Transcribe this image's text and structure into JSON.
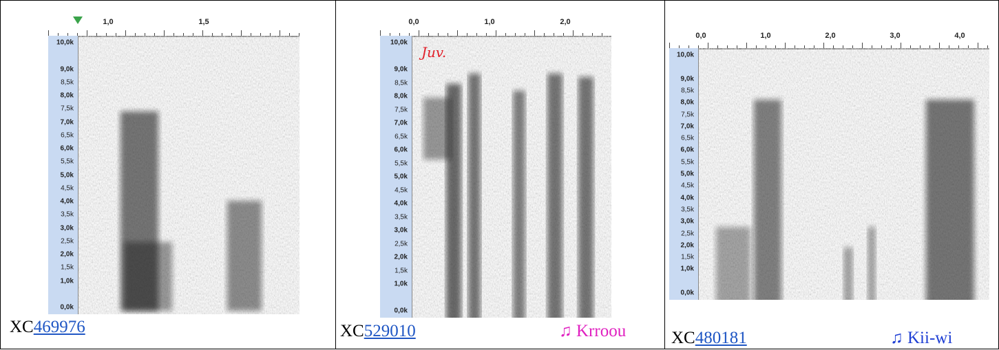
{
  "panels": [
    {
      "time_ticks": [
        "1,0",
        "1,5"
      ],
      "freq_ticks": [
        "10,0k",
        "9,0k",
        "8,5k",
        "8,0k",
        "7,5k",
        "7,0k",
        "6,5k",
        "6,0k",
        "5,5k",
        "5,0k",
        "4,5k",
        "4,0k",
        "3,5k",
        "3,0k",
        "2,5k",
        "2,0k",
        "1,5k",
        "1,0k",
        "0,0k"
      ],
      "caption_prefix": "XC",
      "caption_link": "469976"
    },
    {
      "time_ticks": [
        "0,0",
        "1,0",
        "2,0"
      ],
      "freq_ticks": [
        "10,0k",
        "9,0k",
        "8,5k",
        "8,0k",
        "7,5k",
        "7,0k",
        "6,5k",
        "6,0k",
        "5,5k",
        "5,0k",
        "4,5k",
        "4,0k",
        "3,5k",
        "3,0k",
        "2,5k",
        "2,0k",
        "1,5k",
        "1,0k",
        "0,0k"
      ],
      "caption_prefix": "XC",
      "caption_link": "529010",
      "song": "♫ Krroou",
      "annotation": "Juv."
    },
    {
      "time_ticks": [
        "0,0",
        "1,0",
        "2,0",
        "3,0",
        "4,0"
      ],
      "freq_ticks": [
        "10,0k",
        "9,0k",
        "8,5k",
        "8,0k",
        "7,5k",
        "7,0k",
        "6,5k",
        "6,0k",
        "5,5k",
        "5,0k",
        "4,5k",
        "4,0k",
        "3,5k",
        "3,0k",
        "2,5k",
        "2,0k",
        "1,5k",
        "1,0k",
        "0,0k"
      ],
      "caption_prefix": "XC",
      "caption_link": "480181",
      "song": "♫ Kii-wi"
    }
  ]
}
